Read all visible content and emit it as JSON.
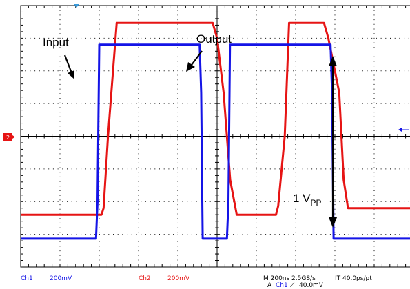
{
  "chart_data": {
    "type": "line",
    "title": "",
    "xlabel": "",
    "ylabel": "",
    "x_unit": "ns",
    "y_unit": "mV",
    "xlim": [
      -600,
      1200
    ],
    "ylim": [
      -600,
      600
    ],
    "grid": true,
    "series": [
      {
        "name": "Input",
        "color": "#1414e6",
        "x": [
          -600,
          -255,
          -248,
          -240,
          220,
          227,
          234,
          300,
          345,
          352,
          359,
          820,
          827,
          834,
          900,
          942,
          950,
          957,
          1200
        ],
        "y": [
          -470,
          -470,
          -300,
          420,
          420,
          200,
          -470,
          -470,
          -470,
          -300,
          420,
          420,
          200,
          -470,
          -470,
          -470,
          -470,
          -470,
          -470
        ]
      },
      {
        "name": "Output",
        "color": "#e61414",
        "x": [
          -600,
          -230,
          -220,
          -200,
          -160,
          280,
          300,
          330,
          360,
          390,
          410,
          450,
          520,
          570,
          580,
          610,
          630,
          660,
          790,
          810,
          860,
          880,
          900,
          922,
          1000,
          1200
        ],
        "y": [
          -360,
          -360,
          -330,
          0,
          520,
          520,
          450,
          200,
          -200,
          -360,
          -360,
          -360,
          -360,
          -360,
          -320,
          0,
          520,
          520,
          520,
          450,
          200,
          -200,
          -330,
          -330,
          -330,
          -330
        ]
      }
    ],
    "annotations": [
      {
        "text": "Input"
      },
      {
        "text": "Output"
      },
      {
        "text": "1 V",
        "subscript": "PP"
      }
    ]
  },
  "status_bar": {
    "ch1_label": "Ch1",
    "ch1_scale": "200mV",
    "ch2_label": "Ch2",
    "ch2_scale": "200mV",
    "timebase": "M 200ns 2.5GS/s",
    "interp": "IT 40.0ps/pt",
    "trigger_prefix": "A",
    "trigger_source": "Ch1",
    "trigger_level": "40.0mV"
  },
  "markers": {
    "ch2_marker": "2"
  },
  "colors": {
    "ch1": "#1414e6",
    "ch2": "#e61414",
    "grid": "#000000"
  }
}
